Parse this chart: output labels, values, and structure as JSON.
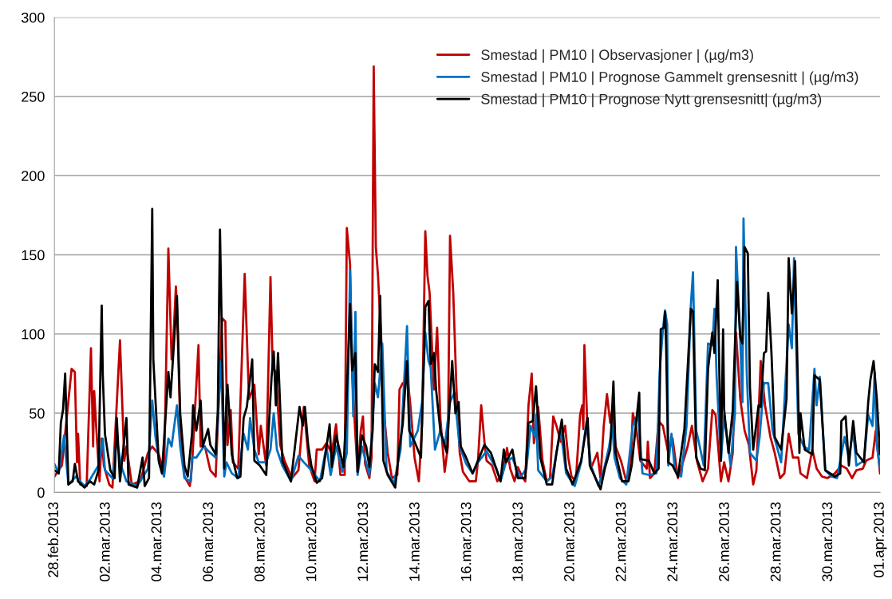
{
  "chart_data": {
    "type": "line",
    "xlim": [
      "2013-02-28T00:00",
      "2013-04-01T00:00"
    ],
    "ylim": [
      0,
      300
    ],
    "yticks": [
      0,
      50,
      100,
      150,
      200,
      250,
      300
    ],
    "xticks": [
      {
        "value": "2013-02-28",
        "label": "28.feb.2013"
      },
      {
        "value": "2013-03-02",
        "label": "02.mar.2013"
      },
      {
        "value": "2013-03-04",
        "label": "04.mar.2013"
      },
      {
        "value": "2013-03-06",
        "label": "06.mar.2013"
      },
      {
        "value": "2013-03-08",
        "label": "08.mar.2013"
      },
      {
        "value": "2013-03-10",
        "label": "10.mar.2013"
      },
      {
        "value": "2013-03-12",
        "label": "12.mar.2013"
      },
      {
        "value": "2013-03-14",
        "label": "14.mar.2013"
      },
      {
        "value": "2013-03-16",
        "label": "16.mar.2013"
      },
      {
        "value": "2013-03-18",
        "label": "18.mar.2013"
      },
      {
        "value": "2013-03-20",
        "label": "20.mar.2013"
      },
      {
        "value": "2013-03-22",
        "label": "22.mar.2013"
      },
      {
        "value": "2013-03-24",
        "label": "24.mar.2013"
      },
      {
        "value": "2013-03-26",
        "label": "26.mar.2013"
      },
      {
        "value": "2013-03-28",
        "label": "28.mar.2013"
      },
      {
        "value": "2013-03-30",
        "label": "30.mar.2013"
      },
      {
        "value": "2013-04-01",
        "label": "01.apr.2013"
      }
    ],
    "grid": "y",
    "legend": "top right",
    "marker": "none",
    "line_style": "solid",
    "series": [
      {
        "name": "Smestad | PM10 | Observasjoner | (µg/m3)",
        "color": "#c00000",
        "x": [
          "2013-02-28T00:00",
          "2013-02-28T07:00",
          "2013-02-28T16:00",
          "2013-02-28T19:00",
          "2013-02-28T21:00",
          "2013-02-28T22:00",
          "2013-03-01T00:00",
          "2013-03-01T06:00",
          "2013-03-01T10:00",
          "2013-03-01T12:00",
          "2013-03-01T13:00",
          "2013-03-01T15:00",
          "2013-03-01T18:00",
          "2013-03-01T20:00",
          "2013-03-01T22:00",
          "2013-03-02T03:00",
          "2013-03-02T06:00",
          "2013-03-02T13:00",
          "2013-03-02T17:00",
          "2013-03-02T19:00",
          "2013-03-03T00:00",
          "2013-03-03T08:00",
          "2013-03-03T15:00",
          "2013-03-03T19:00",
          "2013-03-04T01:00",
          "2013-03-04T06:00",
          "2013-03-04T10:00",
          "2013-03-04T13:00",
          "2013-03-04T14:00",
          "2013-03-04T17:00",
          "2013-03-04T18:00",
          "2013-03-04T21:00",
          "2013-03-05T01:00",
          "2013-03-05T06:00",
          "2013-03-05T08:00",
          "2013-03-05T14:00",
          "2013-03-05T16:00",
          "2013-03-05T20:00",
          "2013-03-06T01:00",
          "2013-03-06T06:00",
          "2013-03-06T12:00",
          "2013-03-06T15:00",
          "2013-03-06T17:00",
          "2013-03-06T20:00",
          "2013-03-06T22:00",
          "2013-03-07T03:00",
          "2013-03-07T09:00",
          "2013-03-07T13:00",
          "2013-03-07T18:00",
          "2013-03-07T22:00",
          "2013-03-08T00:00",
          "2013-03-08T05:00",
          "2013-03-08T09:00",
          "2013-03-08T11:00",
          "2013-03-08T14:00",
          "2013-03-08T18:00",
          "2013-03-08T22:00",
          "2013-03-09T05:00",
          "2013-03-09T11:00",
          "2013-03-09T16:00",
          "2013-03-09T21:00",
          "2013-03-10T02:00",
          "2013-03-10T04:00",
          "2013-03-10T09:00",
          "2013-03-10T13:00",
          "2013-03-10T18:00",
          "2013-03-10T22:00",
          "2013-03-11T02:00",
          "2013-03-11T06:00",
          "2013-03-11T08:00",
          "2013-03-11T11:00",
          "2013-03-11T13:00",
          "2013-03-11T16:00",
          "2013-03-11T18:00",
          "2013-03-11T21:00",
          "2013-03-11T23:00",
          "2013-03-12T01:00",
          "2013-03-12T05:00",
          "2013-03-12T07:00",
          "2013-03-12T09:00",
          "2013-03-12T11:00",
          "2013-03-12T13:00",
          "2013-03-12T17:00",
          "2013-03-12T19:00",
          "2013-03-12T22:00",
          "2013-03-13T02:00",
          "2013-03-13T07:00",
          "2013-03-13T09:00",
          "2013-03-13T12:00",
          "2013-03-13T17:00",
          "2013-03-13T19:00",
          "2013-03-13T23:00",
          "2013-03-14T03:00",
          "2013-03-14T06:00",
          "2013-03-14T09:00",
          "2013-03-14T11:00",
          "2013-03-14T13:00",
          "2013-03-14T17:00",
          "2013-03-14T20:00",
          "2013-03-14T23:00",
          "2013-03-15T03:00",
          "2013-03-15T06:00",
          "2013-03-15T08:00",
          "2013-03-15T11:00",
          "2013-03-15T14:00",
          "2013-03-15T17:00",
          "2013-03-15T20:00",
          "2013-03-16T02:00",
          "2013-03-16T08:00",
          "2013-03-16T10:00",
          "2013-03-16T13:00",
          "2013-03-16T16:00",
          "2013-03-16T18:00",
          "2013-03-16T23:00",
          "2013-03-17T04:00",
          "2013-03-17T09:00",
          "2013-03-17T13:00",
          "2013-03-17T16:00",
          "2013-03-17T20:00",
          "2013-03-17T23:00",
          "2013-03-18T03:00",
          "2013-03-18T06:00",
          "2013-03-18T09:00",
          "2013-03-18T12:00",
          "2013-03-18T14:00",
          "2013-03-18T18:00",
          "2013-03-18T22:00",
          "2013-03-19T02:00",
          "2013-03-19T05:00",
          "2013-03-19T08:00",
          "2013-03-19T11:00",
          "2013-03-19T15:00",
          "2013-03-19T19:00",
          "2013-03-19T22:00",
          "2013-03-20T01:00",
          "2013-03-20T05:00",
          "2013-03-20T09:00",
          "2013-03-20T11:00",
          "2013-03-20T12:00",
          "2013-03-20T13:00",
          "2013-03-20T16:00",
          "2013-03-20T19:00",
          "2013-03-21T01:00",
          "2013-03-21T04:00",
          "2013-03-21T07:00",
          "2013-03-21T10:00",
          "2013-03-21T13:00",
          "2013-03-21T15:00",
          "2013-03-21T18:00",
          "2013-03-21T23:00",
          "2013-03-22T04:00",
          "2013-03-22T08:00",
          "2013-03-22T10:00",
          "2013-03-22T13:00",
          "2013-03-22T17:00",
          "2013-03-22T23:00",
          "2013-03-23T00:00",
          "2013-03-23T02:00",
          "2013-03-23T06:00",
          "2013-03-23T10:00",
          "2013-03-23T14:00",
          "2013-03-23T19:00",
          "2013-03-23T23:00",
          "2013-03-24T04:00",
          "2013-03-24T10:00",
          "2013-03-24T13:00",
          "2013-03-24T17:00",
          "2013-03-24T22:00",
          "2013-03-25T03:00",
          "2013-03-25T08:00",
          "2013-03-25T12:00",
          "2013-03-25T15:00",
          "2013-03-25T20:00",
          "2013-03-25T23:00",
          "2013-03-26T03:00",
          "2013-03-26T07:00",
          "2013-03-26T10:00",
          "2013-03-26T14:00",
          "2013-03-26T18:00",
          "2013-03-26T22:00",
          "2013-03-27T02:00",
          "2013-03-27T05:00",
          "2013-03-27T09:00",
          "2013-03-27T13:00",
          "2013-03-27T18:00",
          "2013-03-27T22:00",
          "2013-03-28T03:00",
          "2013-03-28T07:00",
          "2013-03-28T11:00",
          "2013-03-28T15:00",
          "2013-03-28T20:00",
          "2013-03-28T22:00",
          "2013-03-29T04:00",
          "2013-03-29T09:00",
          "2013-03-29T13:00",
          "2013-03-29T18:00",
          "2013-03-29T23:00",
          "2013-03-30T06:00",
          "2013-03-30T12:00",
          "2013-03-30T17:00",
          "2013-03-30T22:00",
          "2013-03-31T02:00",
          "2013-03-31T08:00",
          "2013-03-31T11:00",
          "2013-03-31T17:00",
          "2013-03-31T20:00",
          "2013-04-01T00:00"
        ],
        "values": [
          10,
          17,
          78,
          76,
          19,
          37,
          5,
          4,
          91,
          29,
          64,
          40,
          7,
          34,
          17,
          5,
          3,
          96,
          20,
          29,
          5,
          7,
          25,
          29,
          24,
          12,
          154,
          84,
          88,
          130,
          118,
          42,
          10,
          4,
          17,
          93,
          29,
          29,
          14,
          10,
          110,
          108,
          30,
          52,
          19,
          15,
          138,
          59,
          68,
          24,
          42,
          17,
          136,
          79,
          76,
          30,
          20,
          9,
          14,
          54,
          17,
          7,
          27,
          27,
          31,
          25,
          43,
          11,
          11,
          167,
          144,
          74,
          36,
          13,
          39,
          48,
          18,
          9,
          22,
          269,
          155,
          137,
          83,
          47,
          25,
          9,
          11,
          65,
          69,
          69,
          56,
          22,
          7,
          43,
          165,
          137,
          126,
          65,
          104,
          47,
          13,
          29,
          162,
          126,
          65,
          25,
          13,
          7,
          7,
          20,
          55,
          32,
          20,
          17,
          7,
          12,
          28,
          15,
          7,
          16,
          10,
          7,
          55,
          75,
          31,
          54,
          20,
          7,
          9,
          48,
          42,
          32,
          42,
          22,
          10,
          7,
          49,
          55,
          40,
          93,
          37,
          15,
          25,
          9,
          42,
          62,
          44,
          52,
          29,
          20,
          7,
          17,
          50,
          42,
          20,
          15,
          32,
          9,
          12,
          45,
          42,
          25,
          34,
          9,
          22,
          29,
          42,
          19,
          7,
          15,
          52,
          49,
          7,
          19,
          7,
          25,
          101,
          59,
          39,
          30,
          5,
          14,
          83,
          55,
          35,
          25,
          9,
          12,
          37,
          22,
          22,
          12,
          9,
          27,
          15,
          10,
          9,
          12,
          17,
          15,
          9,
          14,
          15,
          20,
          22,
          39,
          12
        ]
      },
      {
        "name": "Smestad | PM10 | Prognose Gammelt grensesnitt | (µg/m3)",
        "color": "#0070c0",
        "x": [
          "2013-02-28T00:00",
          "2013-02-28T04:00",
          "2013-02-28T09:00",
          "2013-02-28T11:00",
          "2013-02-28T13:00",
          "2013-02-28T20:00",
          "2013-03-01T04:00",
          "2013-03-01T09:00",
          "2013-03-01T17:00",
          "2013-03-01T21:00",
          "2013-03-01T23:00",
          "2013-03-02T06:00",
          "2013-03-02T10:00",
          "2013-03-02T14:00",
          "2013-03-02T19:00",
          "2013-03-03T05:00",
          "2013-03-03T15:00",
          "2013-03-03T19:00",
          "2013-03-03T22:00",
          "2013-03-04T02:00",
          "2013-03-04T06:00",
          "2013-03-04T10:00",
          "2013-03-04T13:00",
          "2013-03-04T18:00",
          "2013-03-04T21:00",
          "2013-03-05T01:00",
          "2013-03-05T07:00",
          "2013-03-05T08:00",
          "2013-03-05T12:00",
          "2013-03-05T19:00",
          "2013-03-06T01:00",
          "2013-03-06T06:00",
          "2013-03-06T11:00",
          "2013-03-06T14:00",
          "2013-03-06T16:00",
          "2013-03-06T21:00",
          "2013-03-07T03:00",
          "2013-03-07T08:00",
          "2013-03-07T12:00",
          "2013-03-07T14:00",
          "2013-03-07T18:00",
          "2013-03-07T22:00",
          "2013-03-08T05:00",
          "2013-03-08T09:00",
          "2013-03-08T12:00",
          "2013-03-08T15:00",
          "2013-03-08T20:00",
          "2013-03-09T04:00",
          "2013-03-09T11:00",
          "2013-03-09T16:00",
          "2013-03-09T23:00",
          "2013-03-10T07:00",
          "2013-03-10T13:00",
          "2013-03-10T17:00",
          "2013-03-10T22:00",
          "2013-03-11T04:00",
          "2013-03-11T08:00",
          "2013-03-11T11:00",
          "2013-03-11T14:00",
          "2013-03-11T16:00",
          "2013-03-11T18:00",
          "2013-03-11T22:00",
          "2013-03-12T05:00",
          "2013-03-12T10:00",
          "2013-03-12T13:00",
          "2013-03-12T17:00",
          "2013-03-12T21:00",
          "2013-03-13T04:00",
          "2013-03-13T10:00",
          "2013-03-13T16:00",
          "2013-03-13T19:00",
          "2013-03-14T02:00",
          "2013-03-14T06:00",
          "2013-03-14T09:00",
          "2013-03-14T12:00",
          "2013-03-14T14:00",
          "2013-03-14T18:00",
          "2013-03-14T23:00",
          "2013-03-15T03:00",
          "2013-03-15T08:00",
          "2013-03-15T12:00",
          "2013-03-15T17:00",
          "2013-03-15T23:00",
          "2013-03-16T05:00",
          "2013-03-16T10:00",
          "2013-03-16T18:00",
          "2013-03-17T03:00",
          "2013-03-17T07:00",
          "2013-03-17T12:00",
          "2013-03-17T18:00",
          "2013-03-18T01:00",
          "2013-03-18T07:00",
          "2013-03-18T11:00",
          "2013-03-18T15:00",
          "2013-03-18T16:00",
          "2013-03-18T18:00",
          "2013-03-19T02:00",
          "2013-03-19T07:00",
          "2013-03-19T11:00",
          "2013-03-19T15:00",
          "2013-03-19T20:00",
          "2013-03-20T04:00",
          "2013-03-20T10:00",
          "2013-03-20T15:00",
          "2013-03-20T19:00",
          "2013-03-21T02:00",
          "2013-03-21T07:00",
          "2013-03-21T12:00",
          "2013-03-21T15:00",
          "2013-03-21T17:00",
          "2013-03-21T22:00",
          "2013-03-22T04:00",
          "2013-03-22T10:00",
          "2013-03-22T15:00",
          "2013-03-22T19:00",
          "2013-03-23T01:00",
          "2013-03-23T08:00",
          "2013-03-23T11:00",
          "2013-03-23T14:00",
          "2013-03-23T16:00",
          "2013-03-23T18:00",
          "2013-03-23T19:00",
          "2013-03-23T22:00",
          "2013-03-24T01:00",
          "2013-03-24T07:00",
          "2013-03-24T12:00",
          "2013-03-24T16:00",
          "2013-03-24T18:00",
          "2013-03-24T21:00",
          "2013-03-24T23:00",
          "2013-03-25T04:00",
          "2013-03-25T08:00",
          "2013-03-25T12:00",
          "2013-03-25T14:00",
          "2013-03-25T16:00",
          "2013-03-25T20:00",
          "2013-03-25T23:00",
          "2013-03-26T05:00",
          "2013-03-26T09:00",
          "2013-03-26T10:00",
          "2013-03-26T14:00",
          "2013-03-26T16:00",
          "2013-03-26T17:00",
          "2013-03-26T20:00",
          "2013-03-26T23:00",
          "2013-03-27T05:00",
          "2013-03-27T08:00",
          "2013-03-27T12:00",
          "2013-03-27T16:00",
          "2013-03-27T20:00",
          "2013-03-28T04:00",
          "2013-03-28T11:00",
          "2013-03-28T14:00",
          "2013-03-28T16:00",
          "2013-03-28T20:00",
          "2013-03-29T01:00",
          "2013-03-29T06:00",
          "2013-03-29T11:00",
          "2013-03-29T13:00",
          "2013-03-29T16:00",
          "2013-03-29T21:00",
          "2013-03-30T03:00",
          "2013-03-30T08:00",
          "2013-03-30T15:00",
          "2013-03-30T19:00",
          "2013-03-30T23:00",
          "2013-03-31T02:00",
          "2013-03-31T09:00",
          "2013-03-31T13:00",
          "2013-03-31T17:00",
          "2013-03-31T19:00",
          "2013-03-31T21:00",
          "2013-04-01T00:00"
        ],
        "values": [
          18,
          12,
          36,
          20,
          5,
          10,
          4,
          8,
          17,
          34,
          14,
          9,
          34,
          17,
          7,
          4,
          15,
          58,
          35,
          17,
          10,
          34,
          29,
          55,
          29,
          9,
          7,
          22,
          22,
          29,
          25,
          22,
          83,
          10,
          19,
          12,
          9,
          37,
          27,
          47,
          27,
          19,
          19,
          27,
          50,
          27,
          17,
          7,
          23,
          19,
          14,
          7,
          29,
          11,
          29,
          13,
          25,
          140,
          48,
          114,
          11,
          29,
          11,
          69,
          60,
          94,
          13,
          6,
          27,
          105,
          29,
          39,
          57,
          101,
          83,
          79,
          27,
          39,
          29,
          57,
          63,
          29,
          18,
          12,
          19,
          26,
          15,
          7,
          19,
          22,
          9,
          15,
          42,
          35,
          49,
          14,
          7,
          10,
          25,
          39,
          12,
          4,
          19,
          45,
          17,
          4,
          14,
          29,
          42,
          22,
          9,
          5,
          42,
          50,
          12,
          11,
          12,
          76,
          103,
          115,
          106,
          17,
          37,
          15,
          10,
          42,
          118,
          139,
          39,
          33,
          17,
          94,
          93,
          116,
          73,
          20,
          49,
          17,
          50,
          155,
          96,
          57,
          173,
          76,
          25,
          20,
          35,
          69,
          69,
          39,
          19,
          106,
          91,
          148,
          37,
          29,
          27,
          78,
          55,
          73,
          14,
          10,
          9,
          35,
          22,
          39,
          17,
          20,
          49,
          42,
          76,
          30,
          15
        ]
      },
      {
        "name": "Smestad | PM10 | Prognose Nytt grensesnitt| (µg/m3)",
        "color": "#000000",
        "x": [
          "2013-02-28T00:00",
          "2013-02-28T04:00",
          "2013-02-28T06:00",
          "2013-02-28T08:00",
          "2013-02-28T10:00",
          "2013-02-28T13:00",
          "2013-02-28T17:00",
          "2013-02-28T19:00",
          "2013-02-28T22:00",
          "2013-03-01T04:00",
          "2013-03-01T09:00",
          "2013-03-01T13:00",
          "2013-03-01T17:00",
          "2013-03-01T20:00",
          "2013-03-01T21:00",
          "2013-03-01T23:00",
          "2013-03-02T04:00",
          "2013-03-02T08:00",
          "2013-03-02T10:00",
          "2013-03-02T13:00",
          "2013-03-02T19:00",
          "2013-03-02T21:00",
          "2013-03-03T05:00",
          "2013-03-03T10:00",
          "2013-03-03T12:00",
          "2013-03-03T16:00",
          "2013-03-03T19:00",
          "2013-03-03T20:00",
          "2013-03-04T01:00",
          "2013-03-04T04:00",
          "2013-03-04T10:00",
          "2013-03-04T12:00",
          "2013-03-04T18:00",
          "2013-03-04T21:00",
          "2013-03-05T01:00",
          "2013-03-05T04:00",
          "2013-03-05T08:00",
          "2013-03-05T09:00",
          "2013-03-05T12:00",
          "2013-03-05T16:00",
          "2013-03-05T18:00",
          "2013-03-05T23:00",
          "2013-03-06T01:00",
          "2013-03-06T06:00",
          "2013-03-06T08:00",
          "2013-03-06T10:00",
          "2013-03-06T14:00",
          "2013-03-06T16:00",
          "2013-03-06T17:00",
          "2013-03-06T21:00",
          "2013-03-07T02:00",
          "2013-03-07T05:00",
          "2013-03-07T08:00",
          "2013-03-07T11:00",
          "2013-03-07T16:00",
          "2013-03-07T18:00",
          "2013-03-07T23:00",
          "2013-03-08T05:00",
          "2013-03-08T10:00",
          "2013-03-08T12:00",
          "2013-03-08T14:00",
          "2013-03-08T16:00",
          "2013-03-08T20:00",
          "2013-03-09T04:00",
          "2013-03-09T12:00",
          "2013-03-09T15:00",
          "2013-03-09T17:00",
          "2013-03-09T20:00",
          "2013-03-09T23:00",
          "2013-03-10T04:00",
          "2013-03-10T09:00",
          "2013-03-10T16:00",
          "2013-03-10T18:00",
          "2013-03-10T22:00",
          "2013-03-11T05:00",
          "2013-03-11T07:00",
          "2013-03-11T11:00",
          "2013-03-11T13:00",
          "2013-03-11T16:00",
          "2013-03-11T18:00",
          "2013-03-11T22:00",
          "2013-03-12T02:00",
          "2013-03-12T05:00",
          "2013-03-12T08:00",
          "2013-03-12T10:00",
          "2013-03-12T13:00",
          "2013-03-12T15:00",
          "2013-03-12T18:00",
          "2013-03-12T22:00",
          "2013-03-13T05:00",
          "2013-03-13T09:00",
          "2013-03-13T12:00",
          "2013-03-13T16:00",
          "2013-03-13T18:00",
          "2013-03-13T23:00",
          "2013-03-14T05:00",
          "2013-03-14T09:00",
          "2013-03-14T12:00",
          "2013-03-14T14:00",
          "2013-03-14T17:00",
          "2013-03-14T19:00",
          "2013-03-14T23:00",
          "2013-03-15T05:00",
          "2013-03-15T10:00",
          "2013-03-15T13:00",
          "2013-03-15T16:00",
          "2013-03-15T18:00",
          "2013-03-15T23:00",
          "2013-03-16T05:00",
          "2013-03-16T10:00",
          "2013-03-16T16:00",
          "2013-03-16T22:00",
          "2013-03-17T07:00",
          "2013-03-17T10:00",
          "2013-03-17T12:00",
          "2013-03-17T18:00",
          "2013-03-17T23:00",
          "2013-03-18T06:00",
          "2013-03-18T09:00",
          "2013-03-18T13:00",
          "2013-03-18T16:00",
          "2013-03-18T20:00",
          "2013-03-19T02:00",
          "2013-03-19T07:00",
          "2013-03-19T11:00",
          "2013-03-19T16:00",
          "2013-03-19T20:00",
          "2013-03-20T02:00",
          "2013-03-20T10:00",
          "2013-03-20T16:00",
          "2013-03-20T18:00",
          "2013-03-21T04:00",
          "2013-03-21T08:00",
          "2013-03-21T13:00",
          "2013-03-21T16:00",
          "2013-03-21T18:00",
          "2013-03-22T00:00",
          "2013-03-22T06:00",
          "2013-03-22T09:00",
          "2013-03-22T16:00",
          "2013-03-22T17:00",
          "2013-03-23T01:00",
          "2013-03-23T06:00",
          "2013-03-23T10:00",
          "2013-03-23T12:00",
          "2013-03-23T15:00",
          "2013-03-23T16:00",
          "2013-03-23T17:00",
          "2013-03-23T19:00",
          "2013-03-23T23:00",
          "2013-03-24T04:00",
          "2013-03-24T10:00",
          "2013-03-24T16:00",
          "2013-03-24T18:00",
          "2013-03-24T21:00",
          "2013-03-25T01:00",
          "2013-03-25T05:00",
          "2013-03-25T08:00",
          "2013-03-25T12:00",
          "2013-03-25T14:00",
          "2013-03-25T17:00",
          "2013-03-25T20:00",
          "2013-03-25T22:00",
          "2013-03-25T23:00",
          "2013-03-26T03:00",
          "2013-03-26T07:00",
          "2013-03-26T11:00",
          "2013-03-26T14:00",
          "2013-03-26T16:00",
          "2013-03-26T18:00",
          "2013-03-26T21:00",
          "2013-03-26T23:00",
          "2013-03-27T02:00",
          "2013-03-27T07:00",
          "2013-03-27T09:00",
          "2013-03-27T12:00",
          "2013-03-27T14:00",
          "2013-03-27T16:00",
          "2013-03-27T19:00",
          "2013-03-27T22:00",
          "2013-03-28T04:00",
          "2013-03-28T09:00",
          "2013-03-28T11:00",
          "2013-03-28T14:00",
          "2013-03-28T17:00",
          "2013-03-28T21:00",
          "2013-03-28T22:00",
          "2013-03-29T02:00",
          "2013-03-29T09:00",
          "2013-03-29T11:00",
          "2013-03-29T16:00",
          "2013-03-29T21:00",
          "2013-03-30T06:00",
          "2013-03-30T11:00",
          "2013-03-30T12:00",
          "2013-03-30T16:00",
          "2013-03-30T19:00",
          "2013-03-30T23:00",
          "2013-03-31T02:00",
          "2013-03-31T09:00",
          "2013-03-31T13:00",
          "2013-03-31T15:00",
          "2013-03-31T18:00",
          "2013-03-31T21:00",
          "2013-04-01T00:00"
        ],
        "values": [
          14,
          12,
          44,
          52,
          75,
          5,
          7,
          18,
          7,
          3,
          7,
          5,
          14,
          118,
          74,
          37,
          14,
          9,
          47,
          7,
          47,
          5,
          3,
          22,
          4,
          9,
          179,
          84,
          20,
          12,
          76,
          60,
          124,
          50,
          17,
          10,
          37,
          55,
          39,
          58,
          29,
          40,
          30,
          24,
          52,
          166,
          15,
          59,
          68,
          24,
          9,
          10,
          47,
          54,
          84,
          20,
          17,
          11,
          73,
          89,
          55,
          88,
          20,
          7,
          54,
          42,
          54,
          30,
          17,
          6,
          9,
          43,
          16,
          36,
          16,
          45,
          119,
          77,
          88,
          13,
          36,
          29,
          16,
          39,
          81,
          76,
          124,
          20,
          11,
          3,
          29,
          43,
          83,
          39,
          32,
          22,
          117,
          121,
          81,
          88,
          65,
          39,
          25,
          83,
          50,
          57,
          29,
          22,
          12,
          20,
          30,
          25,
          7,
          27,
          19,
          27,
          9,
          9,
          44,
          45,
          67,
          22,
          5,
          5,
          25,
          46,
          15,
          5,
          20,
          47,
          17,
          2,
          15,
          27,
          70,
          25,
          7,
          7,
          17,
          63,
          21,
          20,
          12,
          15,
          103,
          104,
          114,
          93,
          19,
          17,
          10,
          40,
          116,
          114,
          22,
          15,
          14,
          78,
          101,
          88,
          134,
          20,
          103,
          52,
          25,
          52,
          133,
          98,
          94,
          155,
          151,
          66,
          27,
          55,
          54,
          88,
          89,
          126,
          88,
          35,
          27,
          59,
          148,
          113,
          146,
          25,
          50,
          27,
          24,
          74,
          71,
          14,
          10,
          12,
          45,
          48,
          17,
          45,
          25,
          19,
          57,
          71,
          83,
          59,
          24
        ]
      }
    ]
  }
}
